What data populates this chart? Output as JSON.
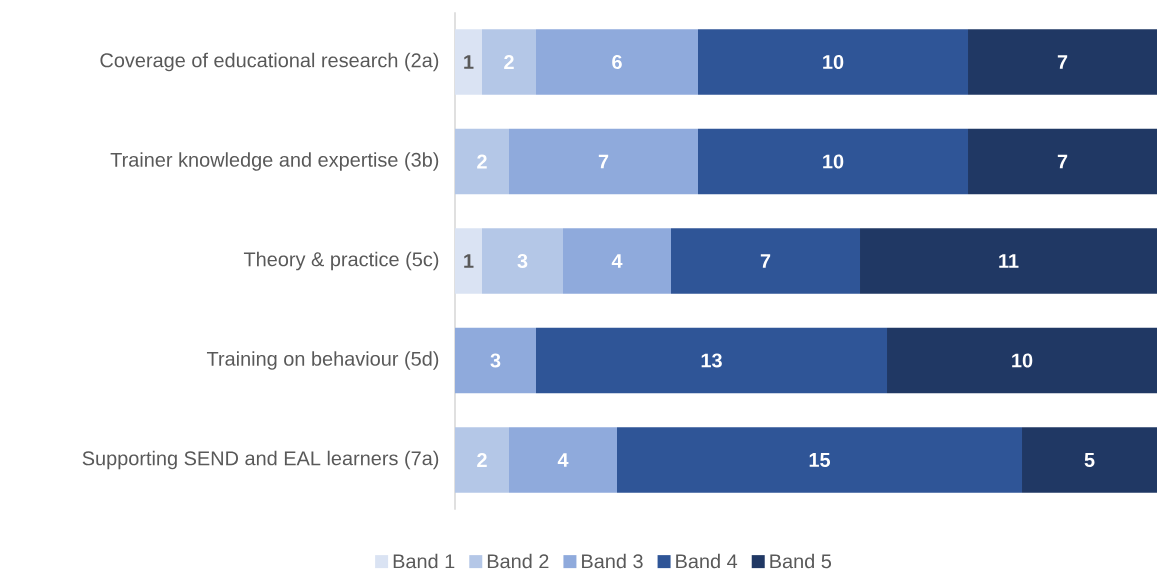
{
  "chart_data": {
    "type": "bar",
    "orientation": "horizontal",
    "stacked": true,
    "data_labels": true,
    "legend": "bottom",
    "xlim": [
      0,
      26
    ],
    "tick_labels": "y",
    "categories": [
      "Coverage of educational research (2a)",
      "Trainer knowledge and expertise (3b)",
      "Theory & practice (5c)",
      "Training on behaviour (5d)",
      "Supporting SEND and EAL learners (7a)"
    ],
    "series": [
      {
        "name": "Band 1",
        "color": "#dae3f3",
        "values": [
          1,
          null,
          1,
          null,
          null
        ]
      },
      {
        "name": "Band 2",
        "color": "#b4c7e7",
        "values": [
          2,
          2,
          3,
          null,
          2
        ]
      },
      {
        "name": "Band 3",
        "color": "#8faadc",
        "values": [
          6,
          7,
          4,
          3,
          4
        ]
      },
      {
        "name": "Band 4",
        "color": "#2f5597",
        "values": [
          10,
          10,
          7,
          13,
          15
        ]
      },
      {
        "name": "Band 5",
        "color": "#203864",
        "values": [
          7,
          7,
          11,
          10,
          5
        ]
      }
    ]
  }
}
